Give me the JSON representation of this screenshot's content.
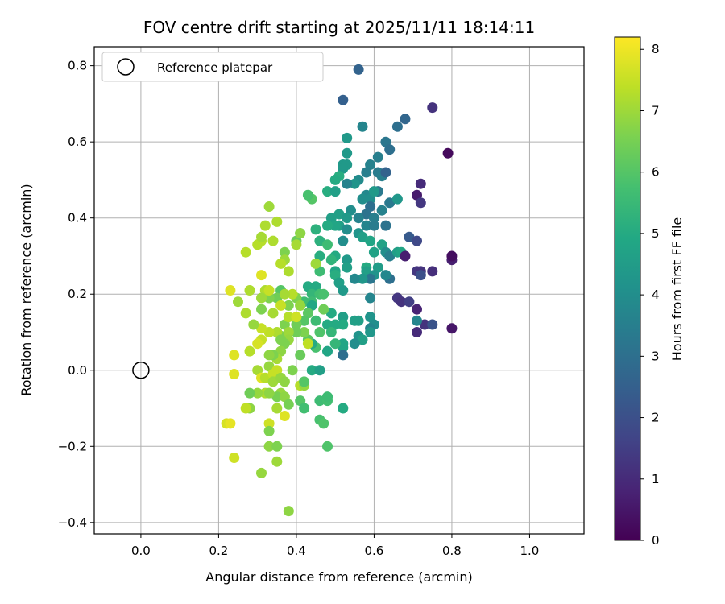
{
  "chart_data": {
    "type": "scatter",
    "title": "FOV centre drift starting at 2025/11/11 18:14:11",
    "xlabel": "Angular distance from reference (arcmin)",
    "ylabel": "Rotation from reference (arcmin)",
    "xlim": [
      -0.12,
      1.14
    ],
    "ylim": [
      -0.43,
      0.85
    ],
    "xticks": [
      0.0,
      0.2,
      0.4,
      0.6,
      0.8,
      1.0
    ],
    "xtick_labels": [
      "0.0",
      "0.2",
      "0.4",
      "0.6",
      "0.8",
      "1.0"
    ],
    "yticks": [
      -0.4,
      -0.2,
      0.0,
      0.2,
      0.4,
      0.6,
      0.8
    ],
    "ytick_labels": [
      "−0.4",
      "−0.2",
      "0.0",
      "0.2",
      "0.4",
      "0.6",
      "0.8"
    ],
    "grid": true,
    "legend": {
      "position": "top-left",
      "label": "Reference platepar"
    },
    "reference_point": {
      "x": 0.0,
      "y": 0.0
    },
    "colorbar": {
      "label": "Hours from first FF file",
      "min": 0,
      "max": 8.2,
      "ticks": [
        0,
        1,
        2,
        3,
        4,
        5,
        6,
        7,
        8
      ],
      "tick_labels": [
        "0",
        "1",
        "2",
        "3",
        "4",
        "5",
        "6",
        "7",
        "8"
      ],
      "colormap": "viridis"
    },
    "points": [
      [
        0.56,
        0.79,
        2.6
      ],
      [
        0.52,
        0.71,
        2.5
      ],
      [
        0.75,
        0.69,
        1.2
      ],
      [
        0.68,
        0.66,
        2.7
      ],
      [
        0.66,
        0.64,
        3.0
      ],
      [
        0.57,
        0.64,
        3.7
      ],
      [
        0.63,
        0.6,
        3.2
      ],
      [
        0.64,
        0.58,
        3.0
      ],
      [
        0.53,
        0.61,
        4.4
      ],
      [
        0.53,
        0.57,
        4.4
      ],
      [
        0.61,
        0.56,
        3.5
      ],
      [
        0.79,
        0.57,
        0.2
      ],
      [
        0.52,
        0.54,
        4.4
      ],
      [
        0.53,
        0.54,
        4.4
      ],
      [
        0.59,
        0.54,
        3.6
      ],
      [
        0.61,
        0.52,
        3.4
      ],
      [
        0.62,
        0.51,
        3.5
      ],
      [
        0.63,
        0.52,
        2.6
      ],
      [
        0.56,
        0.5,
        3.9
      ],
      [
        0.58,
        0.52,
        3.5
      ],
      [
        0.52,
        0.53,
        4.4
      ],
      [
        0.51,
        0.51,
        5.1
      ],
      [
        0.55,
        0.49,
        4.2
      ],
      [
        0.53,
        0.49,
        3.6
      ],
      [
        0.5,
        0.5,
        5.0
      ],
      [
        0.72,
        0.49,
        1.0
      ],
      [
        0.71,
        0.46,
        0.6
      ],
      [
        0.72,
        0.44,
        1.3
      ],
      [
        0.61,
        0.47,
        3.3
      ],
      [
        0.58,
        0.46,
        3.8
      ],
      [
        0.59,
        0.45,
        4.0
      ],
      [
        0.6,
        0.47,
        4.4
      ],
      [
        0.57,
        0.45,
        4.0
      ],
      [
        0.64,
        0.44,
        3.3
      ],
      [
        0.66,
        0.45,
        4.3
      ],
      [
        0.48,
        0.47,
        5.1
      ],
      [
        0.44,
        0.45,
        6.0
      ],
      [
        0.43,
        0.46,
        5.8
      ],
      [
        0.5,
        0.47,
        4.6
      ],
      [
        0.59,
        0.43,
        3.0
      ],
      [
        0.62,
        0.42,
        3.6
      ],
      [
        0.58,
        0.41,
        3.1
      ],
      [
        0.56,
        0.4,
        3.6
      ],
      [
        0.6,
        0.4,
        3.5
      ],
      [
        0.54,
        0.42,
        4.0
      ],
      [
        0.51,
        0.41,
        4.6
      ],
      [
        0.49,
        0.4,
        4.6
      ],
      [
        0.53,
        0.4,
        4.4
      ],
      [
        0.51,
        0.38,
        4.6
      ],
      [
        0.5,
        0.38,
        4.8
      ],
      [
        0.48,
        0.38,
        5.0
      ],
      [
        0.45,
        0.37,
        5.2
      ],
      [
        0.53,
        0.37,
        4.0
      ],
      [
        0.56,
        0.36,
        4.2
      ],
      [
        0.58,
        0.38,
        3.7
      ],
      [
        0.6,
        0.38,
        3.4
      ],
      [
        0.63,
        0.38,
        3.1
      ],
      [
        0.57,
        0.35,
        4.6
      ],
      [
        0.59,
        0.34,
        4.8
      ],
      [
        0.52,
        0.34,
        4.0
      ],
      [
        0.46,
        0.34,
        5.2
      ],
      [
        0.48,
        0.33,
        5.6
      ],
      [
        0.41,
        0.36,
        5.9
      ],
      [
        0.4,
        0.34,
        6.3
      ],
      [
        0.41,
        0.36,
        6.8
      ],
      [
        0.62,
        0.33,
        4.7
      ],
      [
        0.6,
        0.31,
        4.7
      ],
      [
        0.63,
        0.31,
        4.0
      ],
      [
        0.64,
        0.3,
        3.5
      ],
      [
        0.66,
        0.31,
        4.6
      ],
      [
        0.67,
        0.31,
        4.8
      ],
      [
        0.69,
        0.35,
        2.3
      ],
      [
        0.71,
        0.34,
        1.8
      ],
      [
        0.68,
        0.3,
        0.7
      ],
      [
        0.71,
        0.26,
        1.3
      ],
      [
        0.72,
        0.26,
        1.2
      ],
      [
        0.72,
        0.25,
        2.0
      ],
      [
        0.75,
        0.26,
        1.1
      ],
      [
        0.8,
        0.29,
        0.7
      ],
      [
        0.8,
        0.3,
        0.3
      ],
      [
        0.61,
        0.27,
        4.5
      ],
      [
        0.58,
        0.27,
        5.0
      ],
      [
        0.58,
        0.26,
        4.6
      ],
      [
        0.6,
        0.25,
        4.2
      ],
      [
        0.59,
        0.24,
        3.2
      ],
      [
        0.57,
        0.24,
        4.3
      ],
      [
        0.64,
        0.24,
        3.0
      ],
      [
        0.63,
        0.25,
        3.8
      ],
      [
        0.55,
        0.24,
        3.8
      ],
      [
        0.53,
        0.29,
        4.4
      ],
      [
        0.5,
        0.3,
        5.0
      ],
      [
        0.49,
        0.29,
        5.3
      ],
      [
        0.53,
        0.27,
        4.6
      ],
      [
        0.5,
        0.26,
        4.8
      ],
      [
        0.5,
        0.25,
        5.1
      ],
      [
        0.51,
        0.23,
        4.6
      ],
      [
        0.52,
        0.21,
        4.4
      ],
      [
        0.46,
        0.3,
        5.1
      ],
      [
        0.46,
        0.26,
        5.6
      ],
      [
        0.45,
        0.28,
        7.0
      ],
      [
        0.43,
        0.22,
        5.0
      ],
      [
        0.45,
        0.22,
        5.0
      ],
      [
        0.44,
        0.2,
        5.4
      ],
      [
        0.46,
        0.2,
        5.7
      ],
      [
        0.47,
        0.2,
        5.8
      ],
      [
        0.42,
        0.18,
        5.6
      ],
      [
        0.44,
        0.18,
        5.6
      ],
      [
        0.44,
        0.17,
        4.9
      ],
      [
        0.41,
        0.17,
        6.3
      ],
      [
        0.4,
        0.19,
        6.6
      ],
      [
        0.41,
        0.17,
        6.9
      ],
      [
        0.39,
        0.2,
        7.3
      ],
      [
        0.38,
        0.17,
        6.6
      ],
      [
        0.36,
        0.21,
        6.0
      ],
      [
        0.35,
        0.19,
        6.4
      ],
      [
        0.33,
        0.19,
        6.6
      ],
      [
        0.31,
        0.16,
        6.6
      ],
      [
        0.32,
        0.21,
        7.2
      ],
      [
        0.33,
        0.21,
        7.5
      ],
      [
        0.37,
        0.2,
        7.1
      ],
      [
        0.66,
        0.19,
        1.3
      ],
      [
        0.67,
        0.18,
        1.2
      ],
      [
        0.69,
        0.18,
        1.5
      ],
      [
        0.71,
        0.16,
        0.8
      ],
      [
        0.73,
        0.12,
        1.2
      ],
      [
        0.75,
        0.12,
        2.1
      ],
      [
        0.71,
        0.13,
        3.7
      ],
      [
        0.71,
        0.1,
        1.0
      ],
      [
        0.8,
        0.11,
        0.5
      ],
      [
        0.59,
        0.19,
        3.7
      ],
      [
        0.59,
        0.14,
        4.2
      ],
      [
        0.6,
        0.12,
        4.0
      ],
      [
        0.59,
        0.11,
        3.7
      ],
      [
        0.59,
        0.1,
        4.3
      ],
      [
        0.56,
        0.13,
        4.6
      ],
      [
        0.55,
        0.13,
        4.6
      ],
      [
        0.52,
        0.14,
        4.6
      ],
      [
        0.52,
        0.12,
        5.0
      ],
      [
        0.5,
        0.12,
        5.0
      ],
      [
        0.48,
        0.12,
        5.0
      ],
      [
        0.49,
        0.15,
        5.0
      ],
      [
        0.47,
        0.16,
        6.4
      ],
      [
        0.45,
        0.13,
        5.6
      ],
      [
        0.43,
        0.15,
        6.1
      ],
      [
        0.42,
        0.13,
        6.0
      ],
      [
        0.4,
        0.12,
        6.4
      ],
      [
        0.37,
        0.12,
        6.6
      ],
      [
        0.34,
        0.15,
        7.1
      ],
      [
        0.36,
        0.09,
        6.6
      ],
      [
        0.35,
        0.1,
        7.2
      ],
      [
        0.33,
        0.1,
        7.4
      ],
      [
        0.31,
        0.11,
        7.5
      ],
      [
        0.31,
        0.08,
        7.5
      ],
      [
        0.3,
        0.07,
        7.7
      ],
      [
        0.28,
        0.05,
        7.3
      ],
      [
        0.24,
        0.04,
        7.8
      ],
      [
        0.56,
        0.09,
        4.2
      ],
      [
        0.57,
        0.08,
        4.6
      ],
      [
        0.55,
        0.07,
        4.0
      ],
      [
        0.52,
        0.07,
        4.8
      ],
      [
        0.52,
        0.06,
        4.8
      ],
      [
        0.52,
        0.04,
        3.0
      ],
      [
        0.5,
        0.07,
        5.4
      ],
      [
        0.49,
        0.1,
        5.4
      ],
      [
        0.48,
        0.05,
        4.8
      ],
      [
        0.46,
        0.1,
        5.9
      ],
      [
        0.45,
        0.06,
        5.8
      ],
      [
        0.44,
        0.07,
        5.0
      ],
      [
        0.43,
        0.08,
        6.1
      ],
      [
        0.42,
        0.1,
        6.6
      ],
      [
        0.4,
        0.1,
        6.4
      ],
      [
        0.38,
        0.1,
        7.0
      ],
      [
        0.38,
        0.08,
        6.9
      ],
      [
        0.37,
        0.07,
        6.6
      ],
      [
        0.36,
        0.08,
        6.6
      ],
      [
        0.36,
        0.05,
        6.8
      ],
      [
        0.35,
        0.03,
        7.1
      ],
      [
        0.34,
        0.04,
        6.6
      ],
      [
        0.33,
        0.01,
        6.9
      ],
      [
        0.33,
        0.04,
        6.8
      ],
      [
        0.3,
        0.0,
        7.1
      ],
      [
        0.31,
        -0.02,
        7.8
      ],
      [
        0.32,
        -0.02,
        7.3
      ],
      [
        0.34,
        -0.01,
        7.5
      ],
      [
        0.35,
        0.0,
        7.5
      ],
      [
        0.34,
        -0.03,
        7.0
      ],
      [
        0.36,
        -0.02,
        6.9
      ],
      [
        0.37,
        -0.03,
        6.8
      ],
      [
        0.39,
        0.0,
        6.6
      ],
      [
        0.41,
        0.04,
        6.3
      ],
      [
        0.44,
        0.0,
        5.0
      ],
      [
        0.46,
        0.0,
        4.6
      ],
      [
        0.24,
        -0.01,
        7.8
      ],
      [
        0.41,
        -0.04,
        7.3
      ],
      [
        0.42,
        -0.04,
        6.9
      ],
      [
        0.42,
        -0.03,
        6.0
      ],
      [
        0.36,
        -0.06,
        6.9
      ],
      [
        0.35,
        -0.07,
        6.5
      ],
      [
        0.32,
        -0.06,
        7.2
      ],
      [
        0.3,
        -0.06,
        6.9
      ],
      [
        0.28,
        -0.06,
        6.4
      ],
      [
        0.33,
        -0.06,
        6.8
      ],
      [
        0.41,
        -0.08,
        6.0
      ],
      [
        0.42,
        -0.1,
        5.7
      ],
      [
        0.46,
        -0.08,
        5.6
      ],
      [
        0.48,
        -0.07,
        5.6
      ],
      [
        0.48,
        -0.08,
        5.7
      ],
      [
        0.48,
        -0.07,
        5.6
      ],
      [
        0.52,
        -0.1,
        5.0
      ],
      [
        0.37,
        -0.07,
        6.8
      ],
      [
        0.38,
        -0.09,
        6.5
      ],
      [
        0.35,
        -0.1,
        7.1
      ],
      [
        0.37,
        -0.12,
        7.8
      ],
      [
        0.28,
        -0.1,
        6.8
      ],
      [
        0.27,
        -0.1,
        7.4
      ],
      [
        0.22,
        -0.14,
        7.7
      ],
      [
        0.23,
        -0.14,
        7.9
      ],
      [
        0.46,
        -0.13,
        5.8
      ],
      [
        0.47,
        -0.14,
        5.9
      ],
      [
        0.33,
        -0.14,
        7.6
      ],
      [
        0.33,
        -0.2,
        6.8
      ],
      [
        0.35,
        -0.2,
        6.6
      ],
      [
        0.33,
        -0.16,
        6.6
      ],
      [
        0.48,
        -0.2,
        5.9
      ],
      [
        0.24,
        -0.23,
        7.6
      ],
      [
        0.35,
        -0.24,
        7.0
      ],
      [
        0.31,
        -0.27,
        6.9
      ],
      [
        0.38,
        -0.37,
        6.8
      ],
      [
        0.23,
        0.21,
        7.8
      ],
      [
        0.25,
        0.18,
        7.0
      ],
      [
        0.27,
        0.15,
        7.2
      ],
      [
        0.28,
        0.21,
        7.2
      ],
      [
        0.27,
        0.31,
        7.3
      ],
      [
        0.3,
        0.33,
        7.3
      ],
      [
        0.31,
        0.34,
        7.3
      ],
      [
        0.31,
        0.35,
        7.1
      ],
      [
        0.32,
        0.38,
        7.2
      ],
      [
        0.33,
        0.43,
        7.0
      ],
      [
        0.34,
        0.34,
        7.2
      ],
      [
        0.35,
        0.39,
        7.2
      ],
      [
        0.37,
        0.31,
        6.6
      ],
      [
        0.37,
        0.29,
        7.0
      ],
      [
        0.38,
        0.26,
        7.2
      ],
      [
        0.36,
        0.28,
        7.3
      ],
      [
        0.31,
        0.25,
        7.8
      ],
      [
        0.31,
        0.19,
        7.0
      ],
      [
        0.36,
        0.17,
        7.5
      ],
      [
        0.38,
        0.14,
        7.3
      ],
      [
        0.4,
        0.14,
        7.6
      ],
      [
        0.4,
        0.33,
        7.1
      ],
      [
        0.43,
        0.07,
        7.4
      ],
      [
        0.29,
        0.12,
        6.9
      ]
    ]
  }
}
